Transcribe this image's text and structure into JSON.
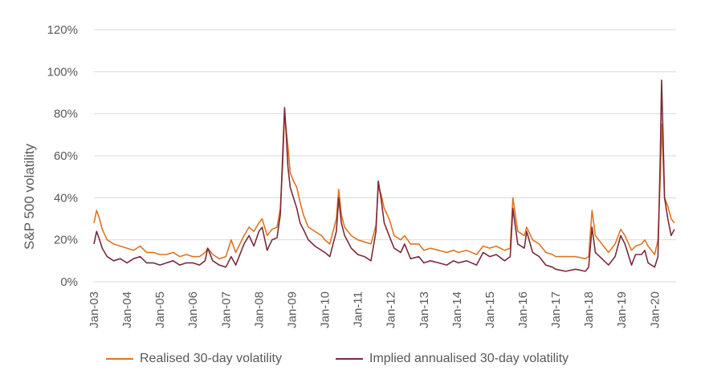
{
  "chart_data": {
    "type": "line",
    "title": "",
    "xlabel": "",
    "ylabel": "S&P 500 volatility",
    "y_unit": "%",
    "ylim": [
      0,
      120
    ],
    "yticks": [
      0,
      20,
      40,
      60,
      80,
      100,
      120
    ],
    "ytick_labels": [
      "0%",
      "20%",
      "40%",
      "60%",
      "80%",
      "100%",
      "120%"
    ],
    "xlim": [
      2003,
      2020.65
    ],
    "xticks": [
      2003,
      2004,
      2005,
      2006,
      2007,
      2008,
      2009,
      2010,
      2011,
      2012,
      2013,
      2014,
      2015,
      2016,
      2017,
      2018,
      2019,
      2020
    ],
    "xtick_labels": [
      "Jan-03",
      "Jan-04",
      "Jan-05",
      "Jan-06",
      "Jan-07",
      "Jan-08",
      "Jan-09",
      "Jan-10",
      "Jan-11",
      "Jan-12",
      "Jan-13",
      "Jan-14",
      "Jan-15",
      "Jan-16",
      "Jan-17",
      "Jan-18",
      "Jan-19",
      "Jan-20"
    ],
    "grid": true,
    "legend_position": "bottom",
    "series": [
      {
        "name": "Realised 30-day volatility",
        "color": "#E07422",
        "x": [
          2003.0,
          2003.08,
          2003.17,
          2003.25,
          2003.4,
          2003.6,
          2003.8,
          2004.0,
          2004.2,
          2004.4,
          2004.6,
          2004.8,
          2005.0,
          2005.2,
          2005.4,
          2005.6,
          2005.8,
          2006.0,
          2006.2,
          2006.37,
          2006.45,
          2006.6,
          2006.8,
          2007.0,
          2007.16,
          2007.3,
          2007.55,
          2007.7,
          2007.85,
          2008.0,
          2008.1,
          2008.25,
          2008.4,
          2008.55,
          2008.65,
          2008.72,
          2008.78,
          2008.83,
          2008.88,
          2008.95,
          2009.05,
          2009.15,
          2009.25,
          2009.35,
          2009.5,
          2009.7,
          2009.9,
          2010.0,
          2010.15,
          2010.35,
          2010.42,
          2010.5,
          2010.6,
          2010.8,
          2011.0,
          2011.2,
          2011.4,
          2011.55,
          2011.62,
          2011.7,
          2011.8,
          2011.95,
          2012.1,
          2012.3,
          2012.42,
          2012.6,
          2012.85,
          2013.0,
          2013.2,
          2013.45,
          2013.7,
          2013.9,
          2014.05,
          2014.3,
          2014.6,
          2014.8,
          2015.0,
          2015.2,
          2015.45,
          2015.62,
          2015.7,
          2015.85,
          2016.05,
          2016.12,
          2016.3,
          2016.5,
          2016.7,
          2016.9,
          2017.0,
          2017.3,
          2017.6,
          2017.9,
          2018.0,
          2018.1,
          2018.2,
          2018.4,
          2018.6,
          2018.8,
          2018.97,
          2019.1,
          2019.3,
          2019.42,
          2019.6,
          2019.7,
          2019.8,
          2020.0,
          2020.1,
          2020.17,
          2020.21,
          2020.25,
          2020.3,
          2020.4,
          2020.5,
          2020.6
        ],
        "values": [
          28,
          34,
          30,
          25,
          20,
          18,
          17,
          16,
          15,
          17,
          14,
          14,
          13,
          13,
          14,
          12,
          13,
          12,
          12,
          14,
          16,
          13,
          11,
          12,
          20,
          14,
          22,
          26,
          24,
          28,
          30,
          22,
          25,
          26,
          35,
          55,
          80,
          72,
          65,
          52,
          48,
          45,
          38,
          32,
          26,
          24,
          22,
          20,
          18,
          30,
          44,
          32,
          26,
          22,
          20,
          19,
          18,
          27,
          45,
          42,
          35,
          30,
          22,
          20,
          22,
          18,
          18,
          15,
          16,
          15,
          14,
          15,
          14,
          15,
          13,
          17,
          16,
          17,
          15,
          16,
          40,
          24,
          22,
          26,
          20,
          18,
          14,
          13,
          12,
          12,
          12,
          11,
          12,
          34,
          22,
          18,
          14,
          18,
          25,
          22,
          15,
          17,
          18,
          20,
          17,
          13,
          20,
          50,
          75,
          60,
          40,
          36,
          30,
          28
        ]
      },
      {
        "name": "Implied annualised 30-day volatility",
        "color": "#7B2B3B",
        "x": [
          2003.0,
          2003.08,
          2003.17,
          2003.25,
          2003.4,
          2003.6,
          2003.8,
          2004.0,
          2004.2,
          2004.4,
          2004.6,
          2004.8,
          2005.0,
          2005.2,
          2005.4,
          2005.6,
          2005.8,
          2006.0,
          2006.2,
          2006.37,
          2006.45,
          2006.6,
          2006.8,
          2007.0,
          2007.16,
          2007.3,
          2007.55,
          2007.7,
          2007.85,
          2008.0,
          2008.1,
          2008.25,
          2008.4,
          2008.55,
          2008.65,
          2008.72,
          2008.78,
          2008.83,
          2008.88,
          2008.95,
          2009.05,
          2009.15,
          2009.25,
          2009.35,
          2009.5,
          2009.7,
          2009.9,
          2010.0,
          2010.15,
          2010.35,
          2010.42,
          2010.5,
          2010.6,
          2010.8,
          2011.0,
          2011.2,
          2011.4,
          2011.55,
          2011.62,
          2011.7,
          2011.8,
          2011.95,
          2012.1,
          2012.3,
          2012.42,
          2012.6,
          2012.85,
          2013.0,
          2013.2,
          2013.45,
          2013.7,
          2013.9,
          2014.05,
          2014.3,
          2014.6,
          2014.8,
          2015.0,
          2015.2,
          2015.45,
          2015.62,
          2015.7,
          2015.85,
          2016.05,
          2016.12,
          2016.3,
          2016.5,
          2016.7,
          2016.9,
          2017.0,
          2017.3,
          2017.6,
          2017.9,
          2018.0,
          2018.1,
          2018.2,
          2018.4,
          2018.6,
          2018.8,
          2018.97,
          2019.1,
          2019.3,
          2019.42,
          2019.6,
          2019.7,
          2019.8,
          2020.0,
          2020.1,
          2020.17,
          2020.21,
          2020.25,
          2020.3,
          2020.4,
          2020.5,
          2020.6
        ],
        "values": [
          18,
          24,
          20,
          16,
          12,
          10,
          11,
          9,
          11,
          12,
          9,
          9,
          8,
          9,
          10,
          8,
          9,
          9,
          8,
          10,
          16,
          10,
          8,
          7,
          12,
          8,
          18,
          22,
          17,
          24,
          26,
          15,
          20,
          21,
          32,
          60,
          83,
          70,
          55,
          45,
          40,
          35,
          28,
          25,
          20,
          17,
          15,
          14,
          12,
          24,
          40,
          28,
          22,
          16,
          13,
          12,
          10,
          24,
          48,
          40,
          28,
          22,
          16,
          14,
          18,
          11,
          12,
          9,
          10,
          9,
          8,
          10,
          9,
          10,
          8,
          14,
          12,
          13,
          10,
          12,
          35,
          18,
          16,
          24,
          14,
          12,
          8,
          7,
          6,
          5,
          6,
          5,
          7,
          26,
          14,
          11,
          8,
          12,
          22,
          18,
          8,
          13,
          13,
          15,
          9,
          7,
          12,
          60,
          96,
          72,
          40,
          30,
          22,
          25
        ]
      }
    ]
  }
}
